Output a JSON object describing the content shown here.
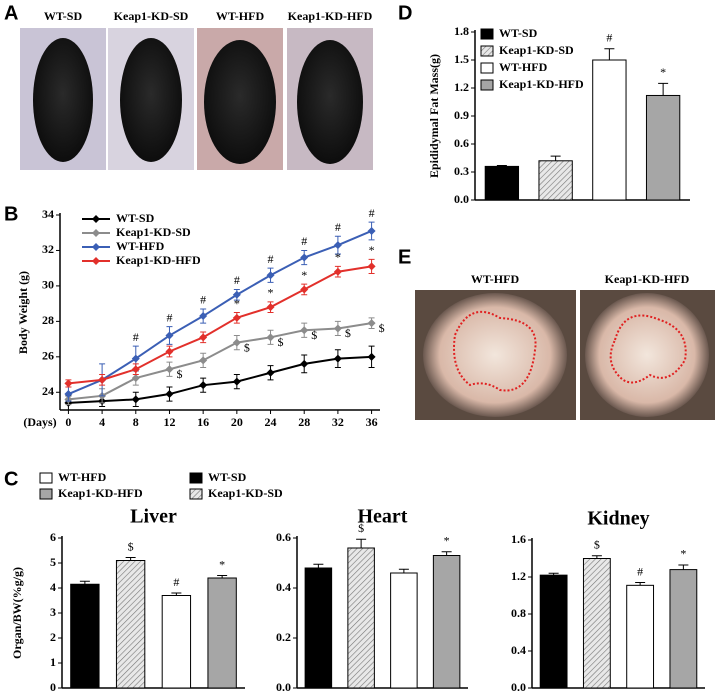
{
  "panel_labels": [
    "A",
    "B",
    "C",
    "D",
    "E"
  ],
  "photo_panels": [
    {
      "labels": [
        "WT-SD",
        "Keap1-KD-SD",
        "WT-HFD",
        "Keap1-KD-HFD"
      ]
    },
    {
      "labels": [
        "WT-HFD",
        "Keap1-KD-HFD"
      ]
    }
  ],
  "panel_c": {
    "ylabel": "Organ/BW(%g/g)",
    "legend": [
      {
        "name": "WT-HFD",
        "color": "#ffffff",
        "hatched": false
      },
      {
        "name": "WT-SD",
        "color": "#000000",
        "hatched": false
      },
      {
        "name": "Keap1-KD-HFD",
        "color": "#a6a6a6",
        "hatched": false
      },
      {
        "name": "Keap1-KD-SD",
        "color": "#d9d9d9",
        "hatched": true
      }
    ]
  },
  "chart_data": [
    {
      "type": "line",
      "ylabel": "Body Weight (g)",
      "xlabel": "(Days)",
      "x": [
        0,
        4,
        8,
        12,
        16,
        20,
        24,
        28,
        32,
        36
      ],
      "xlim": [
        -1,
        37
      ],
      "xticks": [
        0,
        4,
        8,
        12,
        16,
        20,
        24,
        28,
        32,
        36
      ],
      "ylim": [
        23,
        34
      ],
      "yticks": [
        24,
        26,
        28,
        30,
        32,
        34
      ],
      "series": [
        {
          "name": "WT-SD",
          "color": "#000000",
          "values": [
            23.4,
            23.5,
            23.6,
            23.9,
            24.4,
            24.6,
            25.1,
            25.6,
            25.9,
            26.0
          ],
          "errors": [
            0.4,
            0.3,
            0.4,
            0.4,
            0.4,
            0.4,
            0.4,
            0.5,
            0.5,
            0.6
          ]
        },
        {
          "name": "Keap1-KD-SD",
          "color": "#8c8c8c",
          "values": [
            23.6,
            23.8,
            24.8,
            25.3,
            25.8,
            26.8,
            27.1,
            27.5,
            27.6,
            27.9
          ],
          "errors": [
            0.3,
            0.4,
            0.4,
            0.4,
            0.4,
            0.4,
            0.4,
            0.4,
            0.4,
            0.3
          ],
          "annotations": [
            null,
            null,
            null,
            "$",
            null,
            "$",
            "$",
            "$",
            "$",
            "$"
          ]
        },
        {
          "name": "WT-HFD",
          "color": "#3b5fb5",
          "values": [
            23.9,
            24.7,
            25.9,
            27.2,
            28.3,
            29.5,
            30.6,
            31.6,
            32.3,
            33.1
          ],
          "errors": [
            0.4,
            0.9,
            0.7,
            0.5,
            0.4,
            0.3,
            0.4,
            0.4,
            0.5,
            0.5
          ],
          "annotations": [
            null,
            null,
            "#",
            "#",
            "#",
            "#",
            "#",
            "#",
            "#",
            "#"
          ]
        },
        {
          "name": "Keap1-KD-HFD",
          "color": "#e2302b",
          "values": [
            24.5,
            24.7,
            25.3,
            26.3,
            27.1,
            28.2,
            28.8,
            29.8,
            30.8,
            31.1
          ],
          "errors": [
            0.2,
            0.3,
            0.3,
            0.3,
            0.3,
            0.3,
            0.3,
            0.3,
            0.3,
            0.4
          ],
          "annotations": [
            null,
            null,
            null,
            null,
            null,
            "*",
            "*",
            "*",
            "*",
            "*"
          ]
        }
      ]
    },
    {
      "type": "bar",
      "ylabel": "Epididymal Fat Mass(g)",
      "legend": true,
      "categories": [
        "WT-SD",
        "Keap1-KD-SD",
        "WT-HFD",
        "Keap1-KD-HFD"
      ],
      "colors": [
        "#000000",
        "#d9d9d9",
        "#ffffff",
        "#a6a6a6"
      ],
      "hatched": [
        false,
        true,
        false,
        false
      ],
      "values": [
        0.36,
        0.42,
        1.5,
        1.12
      ],
      "errors": [
        0.01,
        0.05,
        0.12,
        0.13
      ],
      "annotations": [
        null,
        null,
        "#",
        "*"
      ],
      "ylim": [
        0,
        1.8
      ],
      "yticks": [
        {
          "value": 0,
          "label": "0.0"
        },
        0.3,
        0.6,
        0.9,
        1.2,
        1.5,
        1.8
      ]
    },
    {
      "type": "bar",
      "title": "Liver",
      "colors": [
        "#000000",
        "#d9d9d9",
        "#ffffff",
        "#a6a6a6"
      ],
      "hatched": [
        false,
        true,
        false,
        false
      ],
      "values": [
        4.15,
        5.1,
        3.7,
        4.4
      ],
      "errors": [
        0.12,
        0.12,
        0.1,
        0.1
      ],
      "annotations": [
        null,
        "$",
        "#",
        "*"
      ],
      "ylim": [
        0,
        6
      ],
      "yticks": [
        0,
        1,
        2,
        3,
        4,
        5,
        6
      ]
    },
    {
      "type": "bar",
      "title": "Heart",
      "colors": [
        "#000000",
        "#d9d9d9",
        "#ffffff",
        "#a6a6a6"
      ],
      "hatched": [
        false,
        true,
        false,
        false
      ],
      "values": [
        0.48,
        0.56,
        0.46,
        0.53
      ],
      "errors": [
        0.015,
        0.035,
        0.015,
        0.015
      ],
      "annotations": [
        null,
        "$",
        null,
        "*"
      ],
      "ylim": [
        0,
        0.6
      ],
      "yticks": [
        {
          "value": 0,
          "label": "0.0"
        },
        0.2,
        0.4,
        0.6
      ]
    },
    {
      "type": "bar",
      "title": "Kidney",
      "colors": [
        "#000000",
        "#d9d9d9",
        "#ffffff",
        "#a6a6a6"
      ],
      "hatched": [
        false,
        true,
        false,
        false
      ],
      "values": [
        1.22,
        1.4,
        1.11,
        1.28
      ],
      "errors": [
        0.02,
        0.03,
        0.03,
        0.05
      ],
      "annotations": [
        null,
        "$",
        "#",
        "*"
      ],
      "ylim": [
        0,
        1.6
      ],
      "yticks": [
        {
          "value": 0,
          "label": "0.0"
        },
        0.4,
        0.8,
        1.2,
        1.6
      ]
    }
  ]
}
